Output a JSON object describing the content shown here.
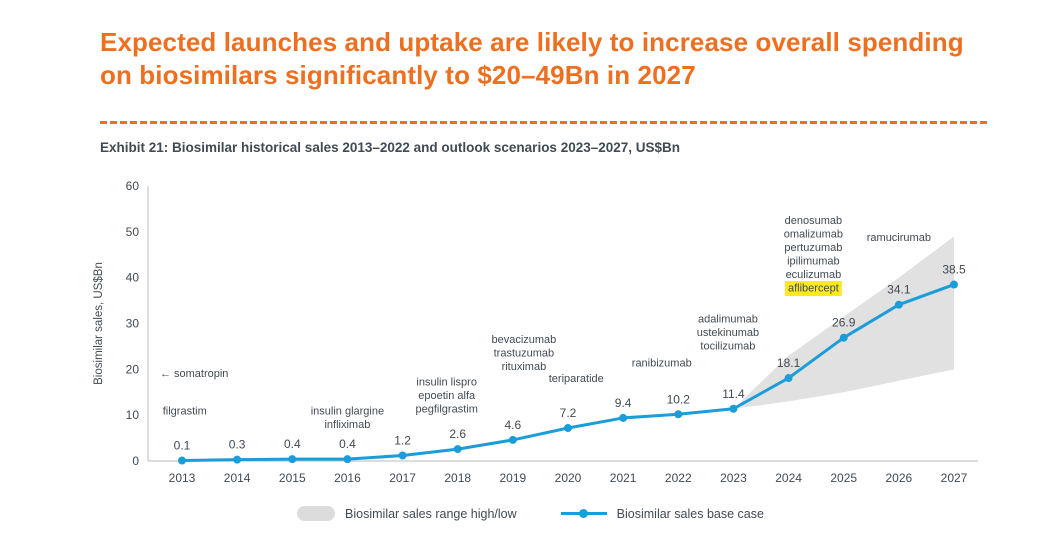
{
  "title": "Expected launches and uptake are likely to increase overall spending on biosimilars significantly to $20–49Bn in 2027",
  "exhibit_caption": "Exhibit 21: Biosimilar historical sales 2013–2022 and outlook scenarios 2023–2027, US$Bn",
  "colors": {
    "accent_orange": "#EE6F1F",
    "line_blue": "#1B9DD9",
    "band_gray": "#DCDCDC",
    "text_dark": "#414A52",
    "axis_gray": "#C3C8CD",
    "highlight_yellow": "#FCE91E"
  },
  "legend": {
    "range_label": "Biosimilar sales range high/low",
    "base_label": "Biosimilar sales base case"
  },
  "chart_data": {
    "type": "line",
    "ylabel": "Biosimilar sales, US$Bn",
    "ylim": [
      0,
      60
    ],
    "yticks": [
      0,
      10,
      20,
      30,
      40,
      50,
      60
    ],
    "x": [
      2013,
      2014,
      2015,
      2016,
      2017,
      2018,
      2019,
      2020,
      2021,
      2022,
      2023,
      2024,
      2025,
      2026,
      2027
    ],
    "series": [
      {
        "name": "Biosimilar sales base case",
        "values": [
          0.1,
          0.3,
          0.4,
          0.4,
          1.2,
          2.6,
          4.6,
          7.2,
          9.4,
          10.2,
          11.4,
          18.1,
          26.9,
          34.1,
          38.5
        ]
      }
    ],
    "band": {
      "name": "Biosimilar sales range high/low",
      "x": [
        2023,
        2024,
        2025,
        2026,
        2027
      ],
      "low": [
        11.4,
        13,
        15,
        17.5,
        20
      ],
      "high": [
        11.4,
        23,
        31.5,
        40,
        49
      ]
    },
    "annotations": [
      {
        "x": 2012.6,
        "y": 18.3,
        "align": "start",
        "lines": [
          "← somatropin"
        ]
      },
      {
        "x": 2013.05,
        "y": 10.2,
        "align": "middle",
        "lines": [
          "filgrastim"
        ]
      },
      {
        "x": 2016,
        "y": 10.2,
        "align": "middle",
        "lines": [
          "insulin glargine",
          "infliximab"
        ]
      },
      {
        "x": 2017.8,
        "y": 16.5,
        "align": "middle",
        "lines": [
          "insulin lispro",
          "epoetin alfa",
          "pegfilgrastim"
        ]
      },
      {
        "x": 2019.2,
        "y": 25.8,
        "align": "middle",
        "lines": [
          "bevacizumab",
          "trastuzumab",
          "rituximab"
        ]
      },
      {
        "x": 2020.15,
        "y": 17.2,
        "align": "middle",
        "lines": [
          "teriparatide"
        ]
      },
      {
        "x": 2021.7,
        "y": 20.6,
        "align": "middle",
        "lines": [
          "ranibizumab"
        ]
      },
      {
        "x": 2022.9,
        "y": 30.2,
        "align": "middle",
        "lines": [
          "adalimumab",
          "ustekinumab",
          "tocilizumab"
        ]
      },
      {
        "x": 2024.45,
        "y": 51.7,
        "align": "middle",
        "lines": [
          "denosumab",
          "omalizumab",
          "pertuzumab",
          "ipilimumab",
          "eculizumab",
          {
            "text": "aflibercept",
            "highlight": true
          }
        ]
      },
      {
        "x": 2026,
        "y": 48,
        "align": "middle",
        "lines": [
          "ramucirumab"
        ]
      }
    ]
  }
}
